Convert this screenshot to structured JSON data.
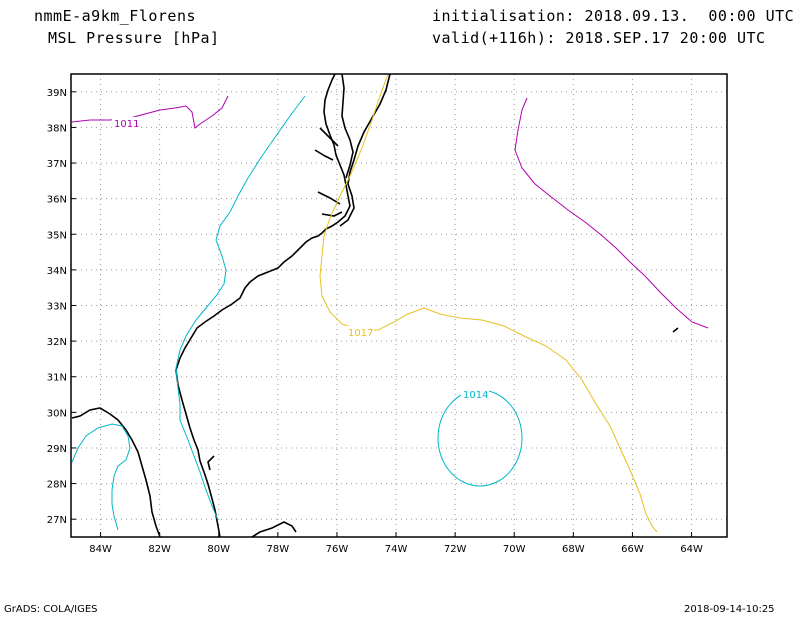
{
  "header": {
    "model": "nmmE-a9km_Florens",
    "field": "MSL Pressure [hPa]",
    "init": "initialisation: 2018.09.13.  00:00 UTC",
    "valid": "valid(+116h): 2018.SEP.17 20:00 UTC"
  },
  "footer": {
    "source": "GrADS: COLA/IGES",
    "timestamp": "2018-09-14-10:25"
  },
  "map": {
    "lon_ticks": [
      "84W",
      "82W",
      "80W",
      "78W",
      "76W",
      "74W",
      "72W",
      "70W",
      "68W",
      "66W",
      "64W"
    ],
    "lat_ticks": [
      "39N",
      "38N",
      "37N",
      "36N",
      "35N",
      "34N",
      "33N",
      "32N",
      "31N",
      "30N",
      "29N",
      "28N",
      "27N"
    ],
    "lon_range": [
      -85,
      -62.8
    ],
    "lat_range": [
      26.5,
      39.5
    ],
    "grid": "dotted",
    "contour_labels": [
      "1011",
      "1017",
      "1014"
    ],
    "contour_colors": {
      "1011": "#b000b0",
      "1014": "#00b8c8",
      "1017": "#e8c020"
    }
  }
}
